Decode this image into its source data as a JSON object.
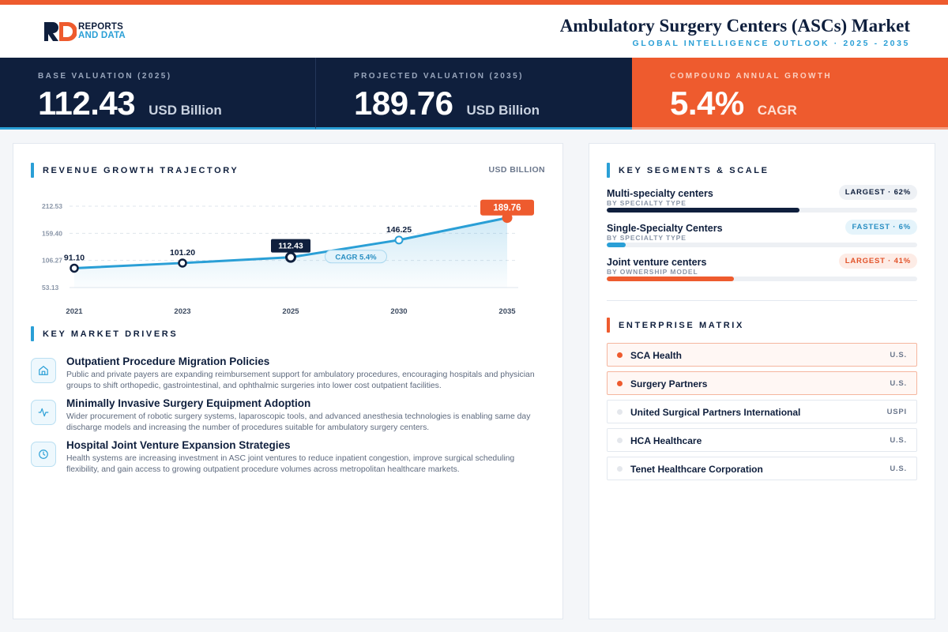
{
  "brand": {
    "line1": "REPORTS",
    "line2": "AND DATA",
    "primary": "#0f1f3d",
    "accent_blue": "#2a9fd6",
    "accent_orange": "#ee5b2e"
  },
  "header": {
    "title": "Ambulatory Surgery Centers (ASCs) Market",
    "subtitle": "GLOBAL INTELLIGENCE OUTLOOK  ·  2025 - 2035"
  },
  "kpis": [
    {
      "label": "BASE VALUATION (2025)",
      "value": "112.43",
      "unit": "USD Billion"
    },
    {
      "label": "PROJECTED VALUATION (2035)",
      "value": "189.76",
      "unit": "USD Billion"
    },
    {
      "label": "COMPOUND ANNUAL GROWTH",
      "value": "5.4%",
      "unit": "CAGR"
    }
  ],
  "revenue": {
    "title": "REVENUE GROWTH TRAJECTORY",
    "unit": "USD BILLION"
  },
  "chart_data": {
    "type": "area",
    "title": "REVENUE GROWTH TRAJECTORY",
    "ylabel": "USD BILLION",
    "categories": [
      "2021",
      "2023",
      "2025",
      "2030",
      "2035"
    ],
    "values": [
      91.1,
      101.2,
      112.43,
      146.25,
      189.76
    ],
    "value_labels": [
      "91.10",
      "101.20",
      "112.43",
      "146.25",
      "189.76"
    ],
    "y_ticks": [
      "53.13",
      "106.27",
      "159.40",
      "212.53"
    ],
    "y_tick_values": [
      53.13,
      106.27,
      159.4,
      212.53
    ],
    "ylim": [
      53.13,
      212.53
    ],
    "grid": true,
    "highlight_base": "2025",
    "highlight_end": "2035",
    "annotation": "CAGR 5.4%",
    "line_color": "#2a9fd6",
    "marker_stroke": "#0f1f3d",
    "highlight_color": "#ee5b2e"
  },
  "drivers": {
    "title": "KEY MARKET DRIVERS",
    "items": [
      {
        "icon": "home-icon",
        "title": "Outpatient Procedure Migration Policies",
        "desc": "Public and private payers are expanding reimbursement support for ambulatory procedures, encouraging hospitals and physician groups to shift orthopedic, gastrointestinal, and ophthalmic surgeries into lower cost outpatient facilities."
      },
      {
        "icon": "activity-icon",
        "title": "Minimally Invasive Surgery Equipment Adoption",
        "desc": "Wider procurement of robotic surgery systems, laparoscopic tools, and advanced anesthesia technologies is enabling same day discharge models and increasing the number of procedures suitable for ambulatory surgery centers."
      },
      {
        "icon": "clock-icon",
        "title": "Hospital Joint Venture Expansion Strategies",
        "desc": "Health systems are increasing investment in ASC joint ventures to reduce inpatient congestion, improve surgical scheduling flexibility, and gain access to growing outpatient procedure volumes across metropolitan healthcare markets."
      }
    ]
  },
  "segments": {
    "title": "KEY SEGMENTS & SCALE",
    "items": [
      {
        "name": "Multi-specialty centers",
        "category": "BY SPECIALTY TYPE",
        "badge": "LARGEST · 62%",
        "share": 62,
        "color": "#0f1f3d"
      },
      {
        "name": "Single-Specialty Centers",
        "category": "BY SPECIALTY TYPE",
        "badge": "FASTEST · 6%",
        "share": 6,
        "color": "#2a9fd6"
      },
      {
        "name": "Joint venture centers",
        "category": "BY OWNERSHIP MODEL",
        "badge": "LARGEST · 41%",
        "share": 41,
        "color": "#ee5b2e"
      }
    ]
  },
  "enterprise": {
    "title": "ENTERPRISE MATRIX",
    "items": [
      {
        "name": "SCA Health",
        "code": "U.S."
      },
      {
        "name": "Surgery Partners",
        "code": "U.S."
      },
      {
        "name": "United Surgical Partners International",
        "code": "USPI"
      },
      {
        "name": "HCA Healthcare",
        "code": "U.S."
      },
      {
        "name": "Tenet Healthcare Corporation",
        "code": "U.S."
      }
    ]
  }
}
